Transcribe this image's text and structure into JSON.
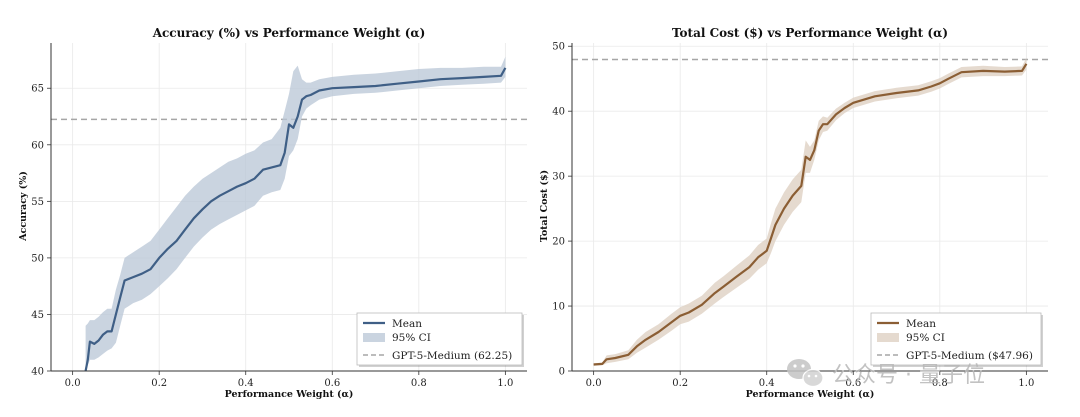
{
  "watermark": {
    "text": "公众号 · 量子位"
  },
  "chart_data": [
    {
      "type": "line",
      "title": "Accuracy (%) vs Performance Weight (α)",
      "xlabel": "Performance Weight (α)",
      "ylabel": "Accuracy (%)",
      "xlim": [
        -0.05,
        1.05
      ],
      "ylim": [
        40,
        69
      ],
      "xticks": [
        0.0,
        0.2,
        0.4,
        0.6,
        0.8,
        1.0
      ],
      "xtick_labels": [
        "0.0",
        "0.2",
        "0.4",
        "0.6",
        "0.8",
        "1.0"
      ],
      "yticks": [
        40,
        45,
        50,
        55,
        60,
        65
      ],
      "ytick_labels": [
        "40",
        "45",
        "50",
        "55",
        "60",
        "65"
      ],
      "grid": true,
      "color": "#3f5f86",
      "ci_color": "#b8c6d6",
      "reference": {
        "name": "GPT-5-Medium (62.25)",
        "value": 62.25
      },
      "legend": {
        "position": "lower-right",
        "entries": [
          "Mean",
          "95% CI",
          "GPT-5-Medium (62.25)"
        ]
      },
      "series": [
        {
          "name": "Mean",
          "x": [
            0.03,
            0.035,
            0.04,
            0.05,
            0.06,
            0.07,
            0.08,
            0.09,
            0.1,
            0.11,
            0.12,
            0.14,
            0.16,
            0.18,
            0.2,
            0.22,
            0.24,
            0.26,
            0.28,
            0.3,
            0.32,
            0.34,
            0.36,
            0.38,
            0.4,
            0.42,
            0.44,
            0.46,
            0.48,
            0.49,
            0.5,
            0.51,
            0.52,
            0.53,
            0.54,
            0.55,
            0.57,
            0.6,
            0.65,
            0.7,
            0.75,
            0.8,
            0.85,
            0.9,
            0.95,
            0.99,
            1.0
          ],
          "values": [
            40.0,
            41.0,
            42.6,
            42.4,
            42.7,
            43.2,
            43.5,
            43.5,
            45.0,
            46.5,
            48.0,
            48.3,
            48.6,
            49.0,
            50.0,
            50.8,
            51.5,
            52.5,
            53.5,
            54.3,
            55.0,
            55.5,
            55.9,
            56.3,
            56.6,
            57.0,
            57.8,
            58.0,
            58.2,
            59.3,
            61.8,
            61.5,
            62.5,
            64.0,
            64.3,
            64.4,
            64.8,
            65.0,
            65.1,
            65.2,
            65.4,
            65.6,
            65.8,
            65.9,
            66.0,
            66.1,
            66.8
          ]
        },
        {
          "name": "95% CI",
          "x": [
            0.03,
            0.035,
            0.04,
            0.05,
            0.06,
            0.07,
            0.08,
            0.09,
            0.1,
            0.11,
            0.12,
            0.14,
            0.16,
            0.18,
            0.2,
            0.22,
            0.24,
            0.26,
            0.28,
            0.3,
            0.32,
            0.34,
            0.36,
            0.38,
            0.4,
            0.42,
            0.44,
            0.46,
            0.48,
            0.49,
            0.5,
            0.51,
            0.52,
            0.53,
            0.54,
            0.55,
            0.57,
            0.6,
            0.65,
            0.7,
            0.75,
            0.8,
            0.85,
            0.9,
            0.95,
            0.99,
            1.0
          ],
          "lower": [
            40.0,
            40.5,
            41.0,
            41.0,
            41.2,
            41.5,
            41.8,
            42.0,
            42.5,
            44.0,
            45.5,
            46.0,
            46.3,
            46.8,
            47.5,
            48.2,
            49.0,
            50.0,
            51.0,
            51.8,
            52.5,
            53.0,
            53.4,
            53.8,
            54.2,
            54.6,
            55.5,
            55.8,
            56.0,
            57.0,
            59.0,
            59.5,
            60.5,
            62.5,
            63.2,
            63.5,
            64.0,
            64.3,
            64.5,
            64.6,
            64.8,
            65.0,
            65.2,
            65.3,
            65.4,
            65.5,
            66.0
          ],
          "upper": [
            44.0,
            44.2,
            44.5,
            44.5,
            44.8,
            45.2,
            45.5,
            45.5,
            47.2,
            48.5,
            50.0,
            50.5,
            51.0,
            51.5,
            52.5,
            53.5,
            54.5,
            55.5,
            56.3,
            57.0,
            57.5,
            58.0,
            58.5,
            58.8,
            59.2,
            59.5,
            60.2,
            60.5,
            61.5,
            63.0,
            64.5,
            66.5,
            67.0,
            65.8,
            65.5,
            65.5,
            65.8,
            66.0,
            66.2,
            66.3,
            66.5,
            66.7,
            66.8,
            66.8,
            66.9,
            66.9,
            67.8
          ]
        }
      ]
    },
    {
      "type": "line",
      "title": "Total Cost ($) vs Performance Weight (α)",
      "xlabel": "Performance Weight (α)",
      "ylabel": "Total Cost ($)",
      "xlim": [
        -0.05,
        1.05
      ],
      "ylim": [
        0,
        50.5
      ],
      "xticks": [
        0.0,
        0.2,
        0.4,
        0.6,
        0.8,
        1.0
      ],
      "xtick_labels": [
        "0.0",
        "0.2",
        "0.4",
        "0.6",
        "0.8",
        "1.0"
      ],
      "yticks": [
        0,
        10,
        20,
        30,
        40,
        50
      ],
      "ytick_labels": [
        "0",
        "10",
        "20",
        "30",
        "40",
        "50"
      ],
      "grid": true,
      "color": "#8b5e34",
      "ci_color": "#dccdbf",
      "reference": {
        "name": "GPT-5-Medium ($47.96)",
        "value": 47.96
      },
      "legend": {
        "position": "lower-right",
        "entries": [
          "Mean",
          "95% CI",
          "GPT-5-Medium ($47.96)"
        ]
      },
      "series": [
        {
          "name": "Mean",
          "x": [
            0.0,
            0.02,
            0.03,
            0.05,
            0.08,
            0.1,
            0.12,
            0.15,
            0.18,
            0.2,
            0.22,
            0.25,
            0.28,
            0.3,
            0.33,
            0.36,
            0.38,
            0.4,
            0.41,
            0.42,
            0.44,
            0.46,
            0.48,
            0.49,
            0.5,
            0.51,
            0.52,
            0.53,
            0.54,
            0.56,
            0.58,
            0.6,
            0.65,
            0.7,
            0.75,
            0.78,
            0.8,
            0.82,
            0.85,
            0.9,
            0.95,
            0.99,
            1.0
          ],
          "values": [
            1.0,
            1.1,
            1.8,
            2.0,
            2.5,
            3.8,
            4.8,
            6.0,
            7.5,
            8.5,
            9.0,
            10.2,
            12.0,
            13.0,
            14.5,
            16.0,
            17.5,
            18.5,
            20.5,
            22.5,
            25.0,
            27.0,
            28.5,
            33.0,
            32.5,
            34.0,
            37.0,
            38.0,
            38.0,
            39.5,
            40.5,
            41.3,
            42.3,
            42.8,
            43.2,
            43.8,
            44.3,
            45.0,
            46.0,
            46.2,
            46.1,
            46.2,
            47.3
          ]
        },
        {
          "name": "95% CI",
          "x": [
            0.0,
            0.02,
            0.03,
            0.05,
            0.08,
            0.1,
            0.12,
            0.15,
            0.18,
            0.2,
            0.22,
            0.25,
            0.28,
            0.3,
            0.33,
            0.36,
            0.38,
            0.4,
            0.41,
            0.42,
            0.44,
            0.46,
            0.48,
            0.49,
            0.5,
            0.51,
            0.52,
            0.53,
            0.54,
            0.56,
            0.58,
            0.6,
            0.65,
            0.7,
            0.75,
            0.78,
            0.8,
            0.82,
            0.85,
            0.9,
            0.95,
            0.99,
            1.0
          ],
          "lower": [
            0.8,
            0.9,
            1.2,
            1.4,
            1.8,
            2.8,
            3.6,
            4.8,
            6.2,
            7.2,
            7.6,
            8.8,
            10.4,
            11.4,
            12.8,
            14.2,
            15.6,
            16.6,
            18.2,
            20.0,
            22.5,
            24.5,
            26.0,
            30.5,
            30.5,
            32.5,
            35.5,
            36.8,
            37.0,
            38.6,
            39.7,
            40.5,
            41.5,
            42.0,
            42.4,
            43.0,
            43.5,
            44.2,
            45.2,
            45.4,
            45.4,
            45.5,
            46.4
          ],
          "upper": [
            1.2,
            1.3,
            2.4,
            2.6,
            3.2,
            4.8,
            6.0,
            7.2,
            8.8,
            9.8,
            10.4,
            11.6,
            13.6,
            14.6,
            16.2,
            17.8,
            19.4,
            20.4,
            22.8,
            25.0,
            27.5,
            29.5,
            31.0,
            35.5,
            34.5,
            35.5,
            38.5,
            39.2,
            39.0,
            40.4,
            41.3,
            42.1,
            43.1,
            43.6,
            44.0,
            44.6,
            45.1,
            45.8,
            46.8,
            47.0,
            46.8,
            46.9,
            48.2
          ]
        }
      ]
    }
  ]
}
